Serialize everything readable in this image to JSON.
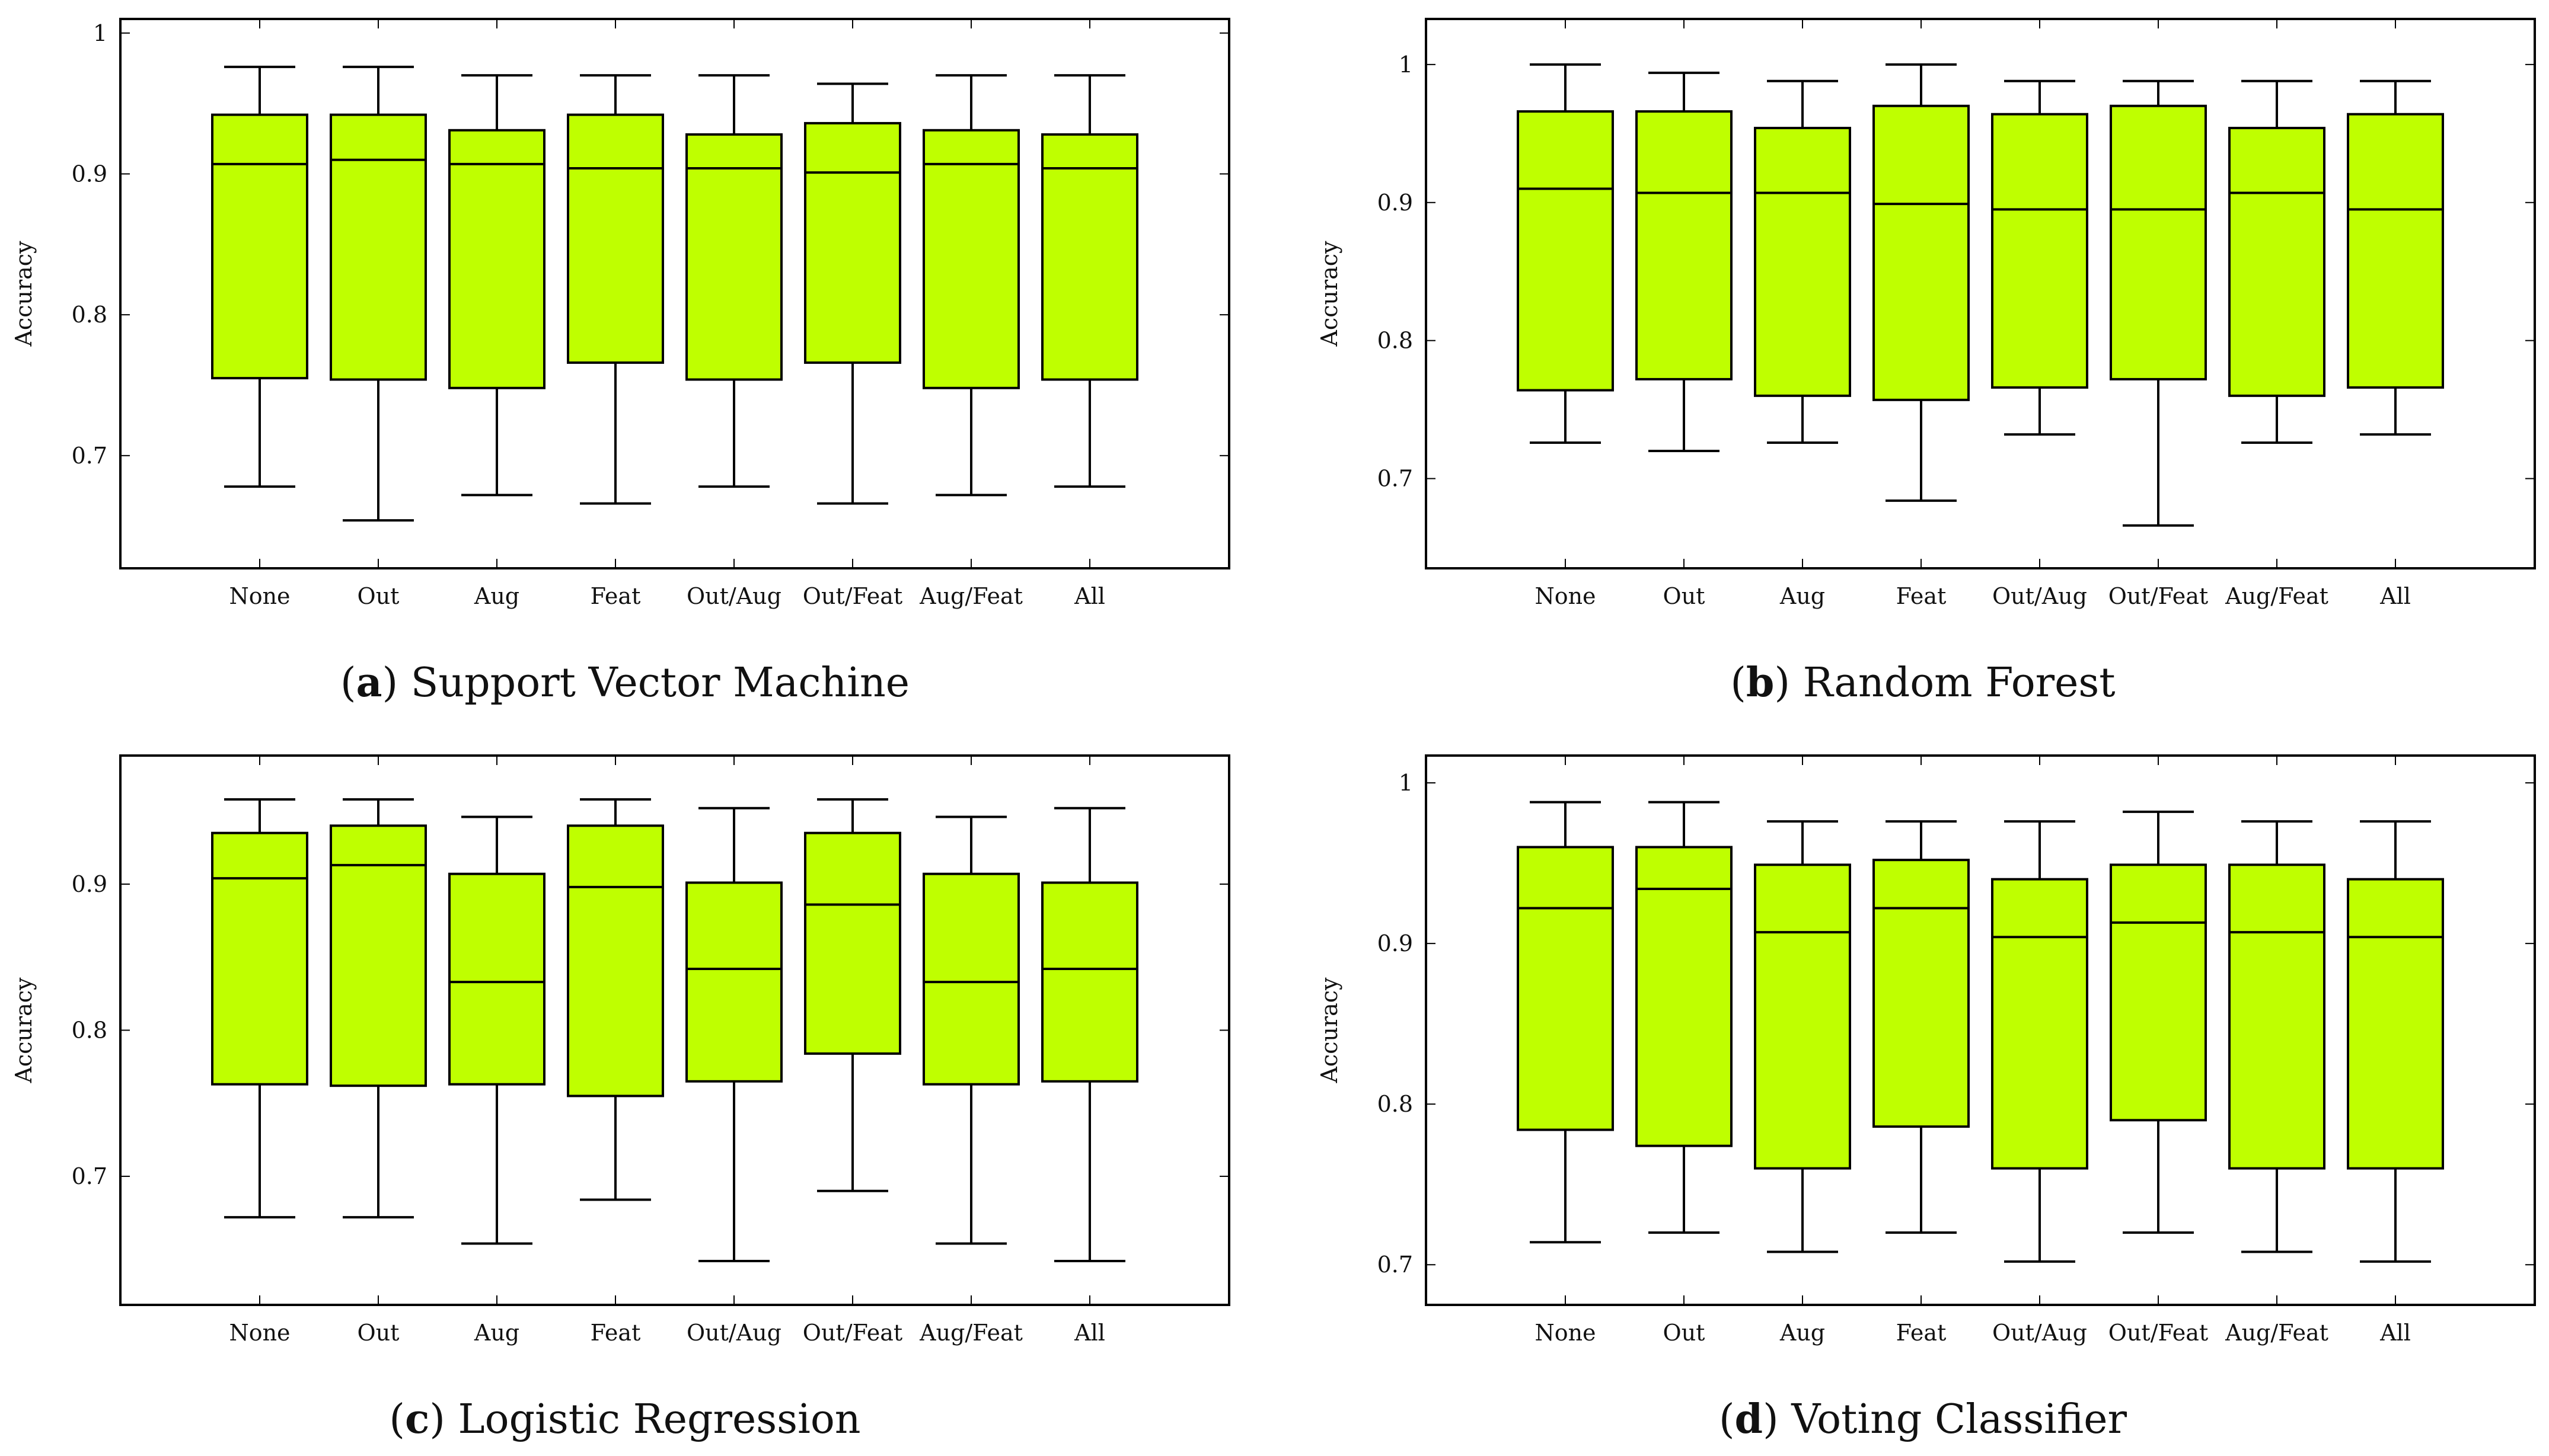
{
  "box_color": "#bfff00",
  "line_color": "#000000",
  "chart_data": [
    {
      "type": "box",
      "letter": "a",
      "title": "Support Vector Machine",
      "ylabel": "Accuracy",
      "ylim": [
        0.62,
        1.01
      ],
      "yticks": [
        0.7,
        0.8,
        0.9,
        1
      ],
      "ytick_labels": [
        "0.7",
        "0.8",
        "0.9",
        "1"
      ],
      "categories": [
        "None",
        "Out",
        "Aug",
        "Feat",
        "Out/Aug",
        "Out/Feat",
        "Aug/Feat",
        "All"
      ],
      "boxes": [
        {
          "whisker_low": 0.678,
          "q1": 0.755,
          "median": 0.907,
          "q3": 0.942,
          "whisker_high": 0.976
        },
        {
          "whisker_low": 0.654,
          "q1": 0.754,
          "median": 0.91,
          "q3": 0.942,
          "whisker_high": 0.976
        },
        {
          "whisker_low": 0.672,
          "q1": 0.748,
          "median": 0.907,
          "q3": 0.931,
          "whisker_high": 0.97
        },
        {
          "whisker_low": 0.666,
          "q1": 0.766,
          "median": 0.904,
          "q3": 0.942,
          "whisker_high": 0.97
        },
        {
          "whisker_low": 0.678,
          "q1": 0.754,
          "median": 0.904,
          "q3": 0.928,
          "whisker_high": 0.97
        },
        {
          "whisker_low": 0.666,
          "q1": 0.766,
          "median": 0.901,
          "q3": 0.936,
          "whisker_high": 0.964
        },
        {
          "whisker_low": 0.672,
          "q1": 0.748,
          "median": 0.907,
          "q3": 0.931,
          "whisker_high": 0.97
        },
        {
          "whisker_low": 0.678,
          "q1": 0.754,
          "median": 0.904,
          "q3": 0.928,
          "whisker_high": 0.97
        }
      ]
    },
    {
      "type": "box",
      "letter": "b",
      "title": "Random Forest",
      "ylabel": "Accuracy",
      "ylim": [
        0.635,
        1.033
      ],
      "yticks": [
        0.7,
        0.8,
        0.9,
        1
      ],
      "ytick_labels": [
        "0.7",
        "0.8",
        "0.9",
        "1"
      ],
      "categories": [
        "None",
        "Out",
        "Aug",
        "Feat",
        "Out/Aug",
        "Out/Feat",
        "Aug/Feat",
        "All"
      ],
      "boxes": [
        {
          "whisker_low": 0.726,
          "q1": 0.764,
          "median": 0.91,
          "q3": 0.966,
          "whisker_high": 1.0
        },
        {
          "whisker_low": 0.72,
          "q1": 0.772,
          "median": 0.907,
          "q3": 0.966,
          "whisker_high": 0.994
        },
        {
          "whisker_low": 0.726,
          "q1": 0.76,
          "median": 0.907,
          "q3": 0.954,
          "whisker_high": 0.988
        },
        {
          "whisker_low": 0.684,
          "q1": 0.757,
          "median": 0.899,
          "q3": 0.97,
          "whisker_high": 1.0
        },
        {
          "whisker_low": 0.732,
          "q1": 0.766,
          "median": 0.895,
          "q3": 0.964,
          "whisker_high": 0.988
        },
        {
          "whisker_low": 0.666,
          "q1": 0.772,
          "median": 0.895,
          "q3": 0.97,
          "whisker_high": 0.988
        },
        {
          "whisker_low": 0.726,
          "q1": 0.76,
          "median": 0.907,
          "q3": 0.954,
          "whisker_high": 0.988
        },
        {
          "whisker_low": 0.732,
          "q1": 0.766,
          "median": 0.895,
          "q3": 0.964,
          "whisker_high": 0.988
        }
      ]
    },
    {
      "type": "box",
      "letter": "c",
      "title": "Logistic Regression",
      "ylabel": "Accuracy",
      "ylim": [
        0.612,
        0.988
      ],
      "yticks": [
        0.7,
        0.8,
        0.9
      ],
      "ytick_labels": [
        "0.7",
        "0.8",
        "0.9"
      ],
      "categories": [
        "None",
        "Out",
        "Aug",
        "Feat",
        "Out/Aug",
        "Out/Feat",
        "Aug/Feat",
        "All"
      ],
      "boxes": [
        {
          "whisker_low": 0.672,
          "q1": 0.763,
          "median": 0.904,
          "q3": 0.935,
          "whisker_high": 0.958
        },
        {
          "whisker_low": 0.672,
          "q1": 0.762,
          "median": 0.913,
          "q3": 0.94,
          "whisker_high": 0.958
        },
        {
          "whisker_low": 0.654,
          "q1": 0.763,
          "median": 0.833,
          "q3": 0.907,
          "whisker_high": 0.946
        },
        {
          "whisker_low": 0.684,
          "q1": 0.755,
          "median": 0.898,
          "q3": 0.94,
          "whisker_high": 0.958
        },
        {
          "whisker_low": 0.642,
          "q1": 0.765,
          "median": 0.842,
          "q3": 0.901,
          "whisker_high": 0.952
        },
        {
          "whisker_low": 0.69,
          "q1": 0.784,
          "median": 0.886,
          "q3": 0.935,
          "whisker_high": 0.958
        },
        {
          "whisker_low": 0.654,
          "q1": 0.763,
          "median": 0.833,
          "q3": 0.907,
          "whisker_high": 0.946
        },
        {
          "whisker_low": 0.642,
          "q1": 0.765,
          "median": 0.842,
          "q3": 0.901,
          "whisker_high": 0.952
        }
      ]
    },
    {
      "type": "box",
      "letter": "d",
      "title": "Voting Classifier",
      "ylabel": "Accuracy",
      "ylim": [
        0.675,
        1.017
      ],
      "yticks": [
        0.7,
        0.8,
        0.9,
        1
      ],
      "ytick_labels": [
        "0.7",
        "0.8",
        "0.9",
        "1"
      ],
      "categories": [
        "None",
        "Out",
        "Aug",
        "Feat",
        "Out/Aug",
        "Out/Feat",
        "Aug/Feat",
        "All"
      ],
      "boxes": [
        {
          "whisker_low": 0.714,
          "q1": 0.784,
          "median": 0.922,
          "q3": 0.96,
          "whisker_high": 0.988
        },
        {
          "whisker_low": 0.72,
          "q1": 0.774,
          "median": 0.934,
          "q3": 0.96,
          "whisker_high": 0.988
        },
        {
          "whisker_low": 0.708,
          "q1": 0.76,
          "median": 0.907,
          "q3": 0.949,
          "whisker_high": 0.976
        },
        {
          "whisker_low": 0.72,
          "q1": 0.786,
          "median": 0.922,
          "q3": 0.952,
          "whisker_high": 0.976
        },
        {
          "whisker_low": 0.702,
          "q1": 0.76,
          "median": 0.904,
          "q3": 0.94,
          "whisker_high": 0.976
        },
        {
          "whisker_low": 0.72,
          "q1": 0.79,
          "median": 0.913,
          "q3": 0.949,
          "whisker_high": 0.982
        },
        {
          "whisker_low": 0.708,
          "q1": 0.76,
          "median": 0.907,
          "q3": 0.949,
          "whisker_high": 0.976
        },
        {
          "whisker_low": 0.702,
          "q1": 0.76,
          "median": 0.904,
          "q3": 0.94,
          "whisker_high": 0.976
        }
      ]
    }
  ]
}
